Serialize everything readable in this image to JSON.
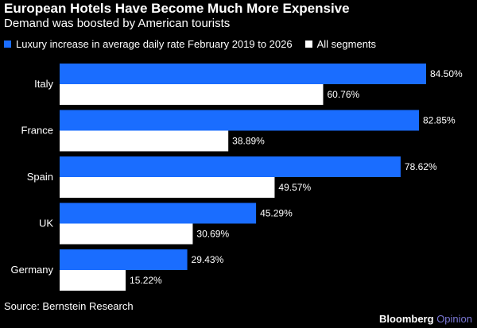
{
  "colors": {
    "background": "#000000",
    "series_luxury": "#1a6dff",
    "series_all": "#ffffff",
    "text": "#ffffff",
    "brand_opinion": "#7b78d6"
  },
  "chart_data": {
    "type": "bar",
    "orientation": "horizontal",
    "title": "European Hotels Have Become Much More Expensive",
    "subtitle": "Demand was boosted by American tourists",
    "categories": [
      "Italy",
      "France",
      "Spain",
      "UK",
      "Germany"
    ],
    "series": [
      {
        "name": "Luxury increase in average daily rate February 2019 to 2026",
        "values": [
          84.5,
          82.85,
          78.62,
          45.29,
          29.43
        ],
        "labels": [
          "84.50%",
          "82.85%",
          "78.62%",
          "45.29%",
          "29.43%"
        ]
      },
      {
        "name": "All segments",
        "values": [
          60.76,
          38.89,
          49.57,
          30.69,
          15.22
        ],
        "labels": [
          "60.76%",
          "38.89%",
          "49.57%",
          "30.69%",
          "15.22%"
        ]
      }
    ],
    "xlim": [
      0,
      84.5
    ],
    "grid": false,
    "legend_position": "top-left",
    "source": "Source: Bernstein Research"
  },
  "brand": {
    "name": "Bloomberg",
    "opinion": "Opinion"
  }
}
